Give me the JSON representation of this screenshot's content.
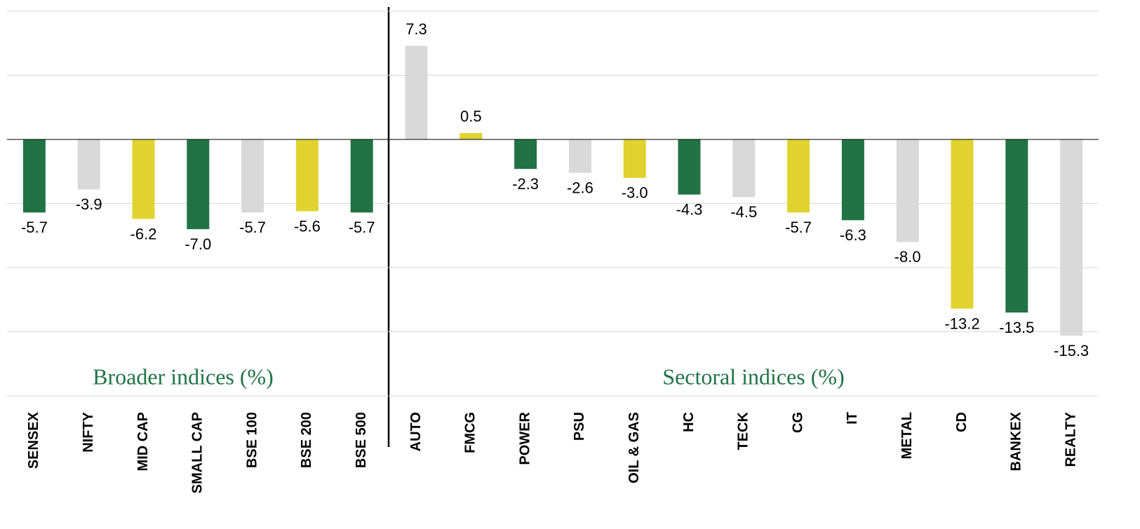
{
  "chart_data": {
    "type": "bar",
    "categories": [
      "SENSEX",
      "NIFTY",
      "MID CAP",
      "SMALL CAP",
      "BSE 100",
      "BSE 200",
      "BSE 500",
      "AUTO",
      "FMCG",
      "POWER",
      "PSU",
      "OIL & GAS",
      "HC",
      "TECK",
      "CG",
      "IT",
      "METAL",
      "CD",
      "BANKEX",
      "REALTY"
    ],
    "values": [
      -5.7,
      -3.9,
      -6.2,
      -7.0,
      -5.7,
      -5.6,
      -5.7,
      7.3,
      0.5,
      -2.3,
      -2.6,
      -3.0,
      -4.3,
      -4.5,
      -5.7,
      -6.3,
      -8.0,
      -13.2,
      -13.5,
      -15.3
    ],
    "value_labels": [
      "-5.7",
      "-3.9",
      "-6.2",
      "-7.0",
      "-5.7",
      "-5.6",
      "-5.7",
      "7.3",
      "0.5",
      "-2.3",
      "-2.6",
      "-3.0",
      "-4.3",
      "-4.5",
      "-5.7",
      "-6.3",
      "-8.0",
      "-13.2",
      "-13.5",
      "-15.3"
    ],
    "colors": [
      "#217346",
      "#d9d9d9",
      "#e0d32f",
      "#217346",
      "#d9d9d9",
      "#e0d32f",
      "#217346",
      "#d9d9d9",
      "#e0d32f",
      "#217346",
      "#d9d9d9",
      "#e0d32f",
      "#217346",
      "#d9d9d9",
      "#e0d32f",
      "#217346",
      "#d9d9d9",
      "#e0d32f",
      "#217346",
      "#d9d9d9"
    ],
    "annotations": [
      "Broader indices (%)",
      "Sectoral indices (%)"
    ],
    "ylim": [
      -20,
      10
    ],
    "yticks": [
      -20,
      -15,
      -10,
      -5,
      0,
      5,
      10
    ],
    "grid": true
  }
}
